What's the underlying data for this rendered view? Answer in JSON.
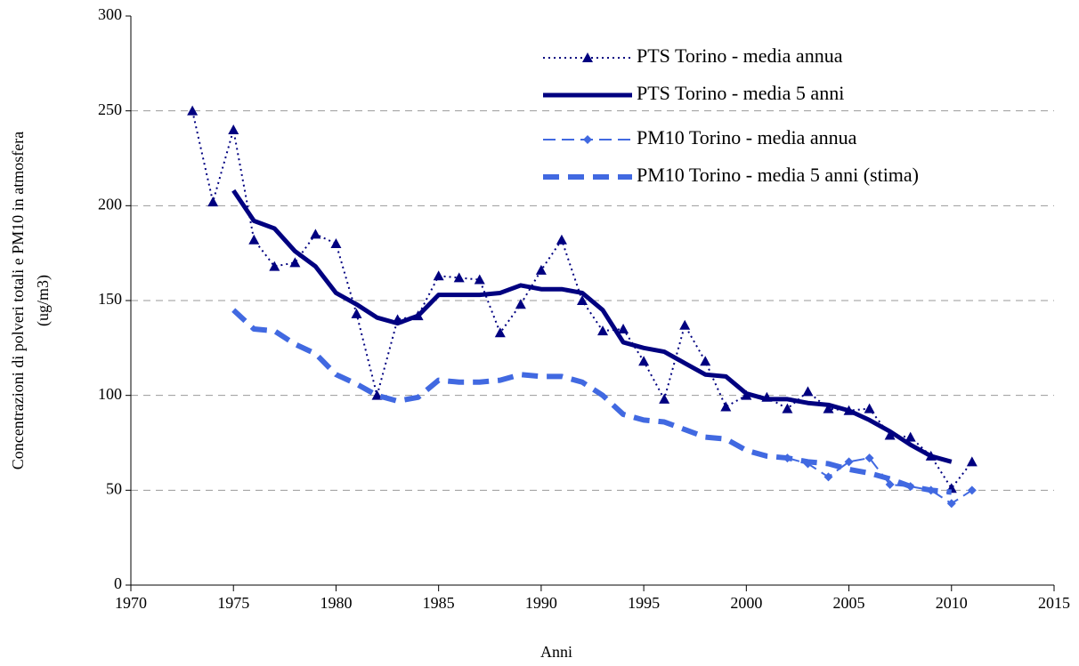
{
  "chart_data": {
    "type": "line",
    "ylabel": [
      "Concentrazioni di polveri totali e PM10 in atmosfera",
      "(ug/m3)"
    ],
    "xlabel": "Anni",
    "xlim": [
      1970,
      2015
    ],
    "xticks": [
      1970,
      1975,
      1980,
      1985,
      1990,
      1995,
      2000,
      2005,
      2010,
      2015
    ],
    "ylim": [
      0,
      300
    ],
    "yticks": [
      0,
      50,
      100,
      150,
      200,
      250,
      300
    ],
    "grid": true,
    "legend": "upper right",
    "series": [
      {
        "name": "PTS Torino - media annua",
        "color": "#000080",
        "dash": "dotted",
        "marker": "triangle",
        "width": 2,
        "x": [
          1973,
          1974,
          1975,
          1976,
          1977,
          1978,
          1979,
          1980,
          1981,
          1982,
          1983,
          1984,
          1985,
          1986,
          1987,
          1988,
          1989,
          1990,
          1991,
          1992,
          1993,
          1994,
          1995,
          1996,
          1997,
          1998,
          1999,
          2000,
          2001,
          2002,
          2003,
          2004,
          2005,
          2006,
          2007,
          2008,
          2009,
          2010,
          2011
        ],
        "values": [
          250,
          202,
          240,
          182,
          168,
          170,
          185,
          180,
          143,
          100,
          140,
          142,
          163,
          162,
          161,
          133,
          148,
          166,
          182,
          150,
          134,
          135,
          118,
          98,
          137,
          118,
          94,
          100,
          99,
          93,
          102,
          93,
          92,
          93,
          79,
          78,
          68,
          51,
          65
        ]
      },
      {
        "name": "PTS Torino - media 5 anni",
        "color": "#000080",
        "dash": "solid",
        "marker": "none",
        "width": 5,
        "x": [
          1975,
          1976,
          1977,
          1978,
          1979,
          1980,
          1981,
          1982,
          1983,
          1984,
          1985,
          1986,
          1987,
          1988,
          1989,
          1990,
          1991,
          1992,
          1993,
          1994,
          1995,
          1996,
          1997,
          1998,
          1999,
          2000,
          2001,
          2002,
          2003,
          2004,
          2005,
          2006,
          2007,
          2008,
          2009,
          2010
        ],
        "values": [
          208,
          192,
          188,
          176,
          168,
          154,
          148,
          141,
          138,
          142,
          153,
          153,
          153,
          154,
          158,
          156,
          156,
          154,
          145,
          128,
          125,
          123,
          117,
          111,
          110,
          101,
          98,
          98,
          96,
          95,
          92,
          87,
          81,
          74,
          68,
          65
        ]
      },
      {
        "name": "PM10 Torino - media annua",
        "color": "#4169e1",
        "dash": "dashed",
        "marker": "diamond",
        "width": 2,
        "x": [
          2002,
          2003,
          2004,
          2005,
          2006,
          2007,
          2008,
          2009,
          2010,
          2011
        ],
        "values": [
          67,
          64,
          57,
          65,
          67,
          53,
          52,
          50,
          43,
          50
        ]
      },
      {
        "name": "PM10 Torino - media 5 anni (stima)",
        "color": "#4169e1",
        "dash": "thickdash",
        "marker": "none",
        "width": 6,
        "x": [
          1975,
          1976,
          1977,
          1978,
          1979,
          1980,
          1981,
          1982,
          1983,
          1984,
          1985,
          1986,
          1987,
          1988,
          1989,
          1990,
          1991,
          1992,
          1993,
          1994,
          1995,
          1996,
          1997,
          1998,
          1999,
          2000,
          2001,
          2002,
          2003,
          2004,
          2005,
          2006,
          2007,
          2008,
          2009,
          2010
        ],
        "values": [
          145,
          135,
          134,
          127,
          122,
          111,
          106,
          100,
          97,
          99,
          108,
          107,
          107,
          108,
          111,
          110,
          110,
          107,
          100,
          90,
          87,
          86,
          82,
          78,
          77,
          71,
          68,
          67,
          65,
          64,
          61,
          59,
          56,
          52,
          50,
          49
        ]
      }
    ]
  }
}
